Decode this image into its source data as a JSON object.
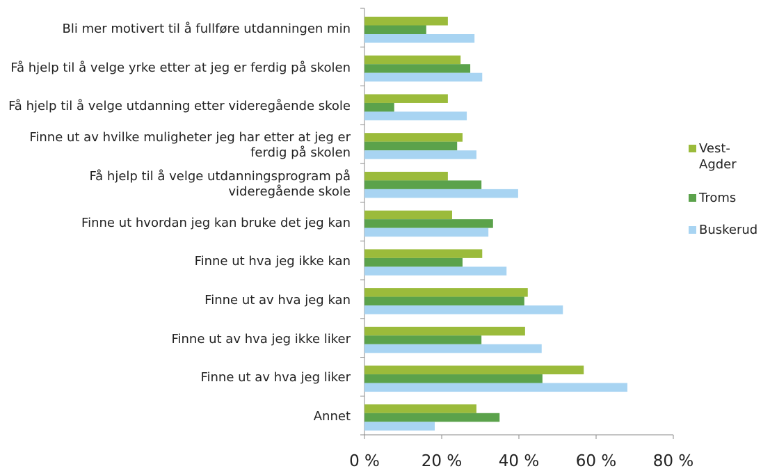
{
  "chart_data": {
    "type": "bar",
    "orientation": "horizontal",
    "categories": [
      "Bli mer motivert til å fullføre utdanningen min",
      "Få hjelp til å velge yrke etter at jeg er ferdig på skolen",
      "Få hjelp til å velge utdanning etter videregående skole",
      "Finne ut av hvilke muligheter jeg har etter at jeg er ferdig på skolen",
      "Få hjelp til å velge utdanningsprogram på videregående skole",
      "Finne ut hvordan jeg kan bruke det jeg kan",
      "Finne ut hva jeg ikke kan",
      "Finne ut av hva jeg kan",
      "Finne ut av hva jeg ikke liker",
      "Finne ut av hva jeg liker",
      "Annet"
    ],
    "series": [
      {
        "name": "Vest-Agder",
        "color": "#9bbb3b",
        "values": [
          21.6,
          24.9,
          21.6,
          25.4,
          21.6,
          22.7,
          30.5,
          42.3,
          41.6,
          56.8,
          29
        ]
      },
      {
        "name": "Troms",
        "color": "#5ba24b",
        "values": [
          16,
          27.4,
          7.7,
          24,
          30.3,
          33.3,
          25.4,
          41.4,
          30.3,
          46.1,
          35
        ]
      },
      {
        "name": "Buskerud",
        "color": "#a8d4f2",
        "values": [
          28.5,
          30.5,
          26.5,
          29,
          39.8,
          32.1,
          36.8,
          51.4,
          45.9,
          68.1,
          18.2
        ]
      }
    ],
    "xlim": [
      0,
      80
    ],
    "xticks": [
      {
        "value": 0,
        "label": "0 %"
      },
      {
        "value": 20,
        "label": "20 %"
      },
      {
        "value": 40,
        "label": "40 %"
      },
      {
        "value": 60,
        "label": "60 %"
      },
      {
        "value": 80,
        "label": "80 %"
      }
    ],
    "legend": "right"
  }
}
